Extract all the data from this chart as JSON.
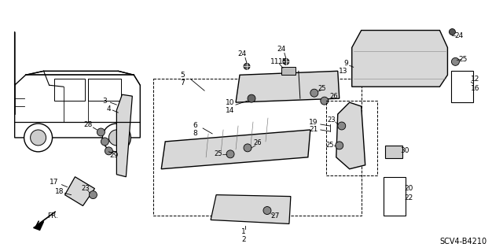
{
  "background_color": "#ffffff",
  "diagram_code": "SCV4-B4210",
  "fig_width": 6.4,
  "fig_height": 3.19,
  "dpi": 100
}
